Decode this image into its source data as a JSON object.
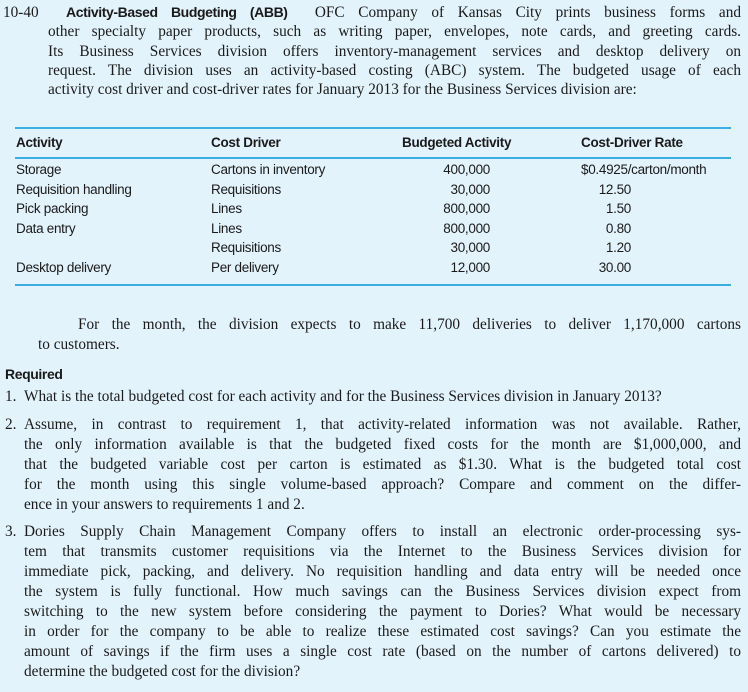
{
  "problem": {
    "number": "10-40",
    "title": "Activity-Based Budgeting (ABB)",
    "intro_lines": [
      "OFC Company of Kansas City prints business forms and",
      "other specialty paper products, such as writing paper, envelopes, note cards, and greeting cards.",
      "Its Business Services division offers inventory-management services and desktop delivery on",
      "request. The division uses an activity-based costing (ABC) system. The budgeted usage of each",
      "activity cost driver and cost-driver rates for January 2013 for the Business Services division are:"
    ]
  },
  "table": {
    "headers": [
      "Activity",
      "Cost Driver",
      "Budgeted Activity",
      "Cost-Driver Rate"
    ],
    "rows": [
      [
        "Storage",
        "Cartons in inventory",
        "400,000",
        "$0.4925/carton/month"
      ],
      [
        "Requisition handling",
        "Requisitions",
        "30,000",
        "12.50"
      ],
      [
        "Pick packing",
        "Lines",
        "800,000",
        "1.50"
      ],
      [
        "Data entry",
        "Lines",
        "800,000",
        "0.80"
      ],
      [
        "",
        "Requisitions",
        "30,000",
        "1.20"
      ],
      [
        "Desktop delivery",
        "Per delivery",
        "12,000",
        "30.00"
      ]
    ],
    "rule_color": "#3aaee0"
  },
  "note_lines": [
    "For the month, the division expects to make 11,700 deliveries to deliver 1,170,000 cartons",
    "to customers."
  ],
  "required": {
    "heading": "Required",
    "items": [
      {
        "number": "1.",
        "lines": [
          "What is the total budgeted cost for each activity and for the Business Services division in January 2013?"
        ]
      },
      {
        "number": "2.",
        "lines": [
          "Assume, in contrast to requirement 1, that activity-related information was not available. Rather,",
          "the only information available is that the budgeted fixed costs for the month are $1,000,000, and",
          "that the budgeted variable cost per carton is estimated as $1.30. What is the budgeted total cost",
          "for the month using this single volume-based approach? Compare and comment on the differ-",
          "ence in your answers to requirements 1 and 2."
        ]
      },
      {
        "number": "3.",
        "lines": [
          "Dories Supply Chain Management Company offers to install an electronic order-processing sys-",
          "tem that transmits customer requisitions via the Internet to the Business Services division for",
          "immediate pick, packing, and delivery. No requisition handling and data entry will be needed once",
          "the system is fully functional. How much savings can the Business Services division expect from",
          "switching to the new system before considering the payment to Dories? What would be necessary",
          "in order for the company to be able to realize these estimated cost savings? Can you estimate the",
          "amount of savings if the firm uses a single cost rate (based on the number of cartons delivered) to",
          "determine the budgeted cost for the division?"
        ]
      }
    ]
  }
}
